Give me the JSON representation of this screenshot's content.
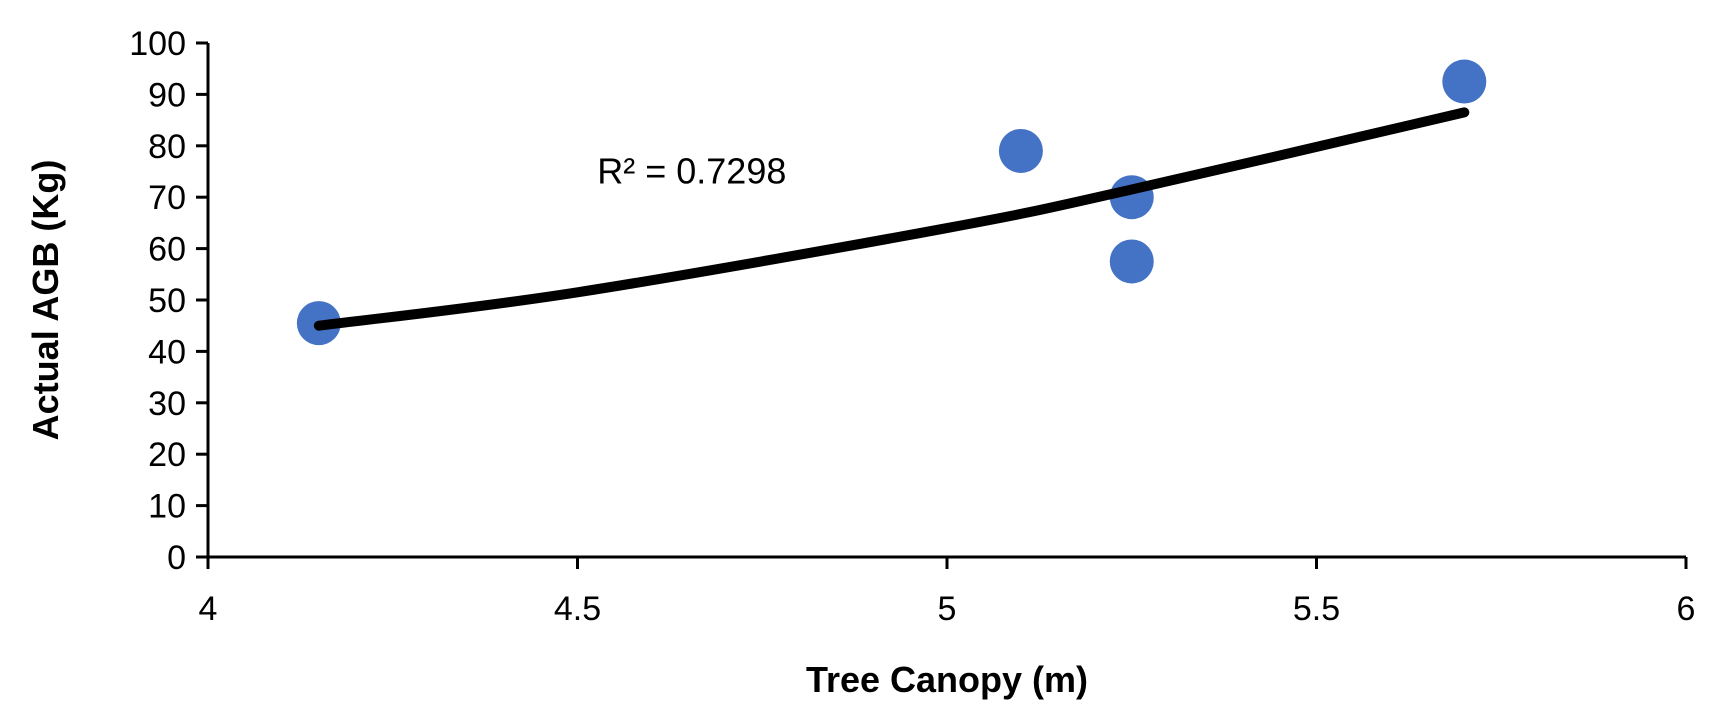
{
  "chart_data": {
    "type": "scatter",
    "title": "",
    "xlabel": "Tree Canopy (m)",
    "ylabel": "Actual AGB (Kg)",
    "xlim": [
      4,
      6
    ],
    "ylim": [
      0,
      100
    ],
    "x_ticks": [
      4,
      4.5,
      5,
      5.5,
      6
    ],
    "x_tick_labels": [
      "4",
      "4.5",
      "5",
      "5.5",
      "6"
    ],
    "y_ticks": [
      0,
      10,
      20,
      30,
      40,
      50,
      60,
      70,
      80,
      90,
      100
    ],
    "y_tick_labels": [
      "0",
      "10",
      "20",
      "30",
      "40",
      "50",
      "60",
      "70",
      "80",
      "90",
      "100"
    ],
    "grid": false,
    "legend": "none",
    "series": [
      {
        "points": [
          {
            "x": 4.15,
            "y": 45.5
          },
          {
            "x": 5.1,
            "y": 79
          },
          {
            "x": 5.25,
            "y": 70
          },
          {
            "x": 5.25,
            "y": 57.5
          },
          {
            "x": 5.7,
            "y": 92.5
          }
        ],
        "color": "#4472C4"
      }
    ],
    "trendline": {
      "type": "exponential",
      "color": "#000000",
      "points": [
        {
          "x": 4.15,
          "y": 45
        },
        {
          "x": 4.5,
          "y": 51.5
        },
        {
          "x": 5.0,
          "y": 64
        },
        {
          "x": 5.25,
          "y": 71.5
        },
        {
          "x": 5.7,
          "y": 86.5
        }
      ]
    },
    "annotations": [
      {
        "text": "R² = 0.7298",
        "x": 4.75,
        "y": 75
      }
    ]
  }
}
